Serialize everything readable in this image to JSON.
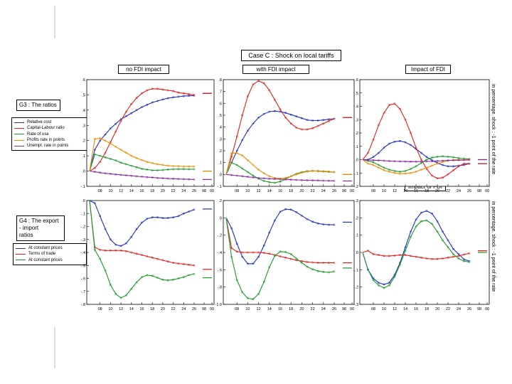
{
  "header": {
    "title": "Case C : Shock on local tariffs",
    "col_titles": [
      "no FDI impact",
      "with FDI impact",
      "Impact of FDI"
    ],
    "inner_title": "Impact of FDI"
  },
  "groups": {
    "g3": "G3 : The ratios",
    "g4": "G4 : The export - import\n ratios"
  },
  "side_note": "in percentage. shock : -1 point of the rate",
  "legends": {
    "top": [
      {
        "name": "Relative cost",
        "color": "#1f2fbf"
      },
      {
        "name": "Capital-Labour ratio",
        "color": "#e0201c"
      },
      {
        "name": "Rate of use",
        "color": "#1a9a2a"
      },
      {
        "name": "Profits rate in points",
        "color": "#f08a00"
      },
      {
        "name": "Unempl. rate in points",
        "color": "#8a2ca0"
      }
    ],
    "bottom": [
      {
        "name": "At constant prices",
        "color": "#1f2fbf"
      },
      {
        "name": "Terms of trade",
        "color": "#e0201c"
      },
      {
        "name": "At constant prices",
        "color": "#1a9a2a"
      }
    ]
  },
  "chart_data": [
    {
      "type": "line",
      "panel": "G3 no FDI impact",
      "x": [
        6,
        7,
        8,
        9,
        10,
        11,
        12,
        13,
        14,
        15,
        16,
        17,
        18,
        19,
        20,
        21,
        22,
        23,
        24,
        25,
        26
      ],
      "ylim": [
        -0.1,
        0.6
      ],
      "yticks": [
        -0.1,
        0.0,
        0.1,
        0.2,
        0.3,
        0.4,
        0.5,
        0.6
      ],
      "ytick_labels": [
        "-.1",
        ".0",
        ".1",
        ".2",
        ".3",
        ".4",
        ".5",
        ".6"
      ],
      "xtick_labels": [
        "08",
        "10",
        "12",
        "14",
        "16",
        "18",
        "20",
        "22",
        "24",
        "26",
        "98",
        "00"
      ],
      "series": [
        {
          "name": "Relative cost",
          "values": [
            0,
            0.14,
            0.2,
            0.24,
            0.28,
            0.31,
            0.34,
            0.36,
            0.38,
            0.4,
            0.42,
            0.435,
            0.45,
            0.46,
            0.47,
            0.478,
            0.484,
            0.488,
            0.492,
            0.494,
            0.495
          ],
          "end_marker": 0.51
        },
        {
          "name": "Capital-Labour ratio",
          "values": [
            0,
            0.02,
            0.06,
            0.12,
            0.19,
            0.26,
            0.33,
            0.39,
            0.44,
            0.48,
            0.51,
            0.53,
            0.54,
            0.54,
            0.535,
            0.53,
            0.525,
            0.515,
            0.51,
            0.505,
            0.5
          ],
          "end_marker": 0.51
        },
        {
          "name": "Rate of use",
          "values": [
            0,
            0.11,
            0.1,
            0.09,
            0.08,
            0.07,
            0.055,
            0.045,
            0.035,
            0.025,
            0.015,
            0.01,
            0.005,
            0.005,
            0.007,
            0.01,
            0.012,
            0.013,
            0.013,
            0.012,
            0.012
          ],
          "end_marker": 0.0
        },
        {
          "name": "Profits rate in points",
          "values": [
            0,
            0.21,
            0.215,
            0.2,
            0.18,
            0.16,
            0.14,
            0.12,
            0.1,
            0.085,
            0.072,
            0.06,
            0.052,
            0.045,
            0.04,
            0.036,
            0.033,
            0.032,
            0.03,
            0.03,
            0.03
          ],
          "end_marker": 0.0
        },
        {
          "name": "Unempl. rate in points",
          "values": [
            0,
            -0.005,
            -0.01,
            -0.015,
            -0.018,
            -0.022,
            -0.025,
            -0.028,
            -0.031,
            -0.034,
            -0.037,
            -0.04,
            -0.042,
            -0.045,
            -0.047,
            -0.049,
            -0.05,
            -0.052,
            -0.053,
            -0.054,
            -0.055
          ],
          "end_marker": -0.055
        }
      ]
    },
    {
      "type": "line",
      "panel": "G3 with FDI impact",
      "x": [
        6,
        7,
        8,
        9,
        10,
        11,
        12,
        13,
        14,
        15,
        16,
        17,
        18,
        19,
        20,
        21,
        22,
        23,
        24,
        25,
        26
      ],
      "ylim": [
        -0.1,
        0.8
      ],
      "yticks": [
        -0.1,
        0.0,
        0.1,
        0.2,
        0.3,
        0.4,
        0.5,
        0.6,
        0.7,
        0.8
      ],
      "ytick_labels": [
        "-.1",
        ".0",
        ".1",
        ".2",
        ".3",
        ".4",
        ".5",
        ".6",
        ".7",
        ".8"
      ],
      "xtick_labels": [
        "08",
        "10",
        "12",
        "14",
        "16",
        "18",
        "20",
        "22",
        "24",
        "26",
        "98",
        "00"
      ],
      "series": [
        {
          "name": "Relative cost",
          "values": [
            0,
            0.1,
            0.2,
            0.29,
            0.37,
            0.43,
            0.48,
            0.51,
            0.53,
            0.535,
            0.53,
            0.52,
            0.505,
            0.49,
            0.475,
            0.46,
            0.455,
            0.455,
            0.46,
            0.465,
            0.47
          ],
          "end_marker": 0.48
        },
        {
          "name": "Capital-Labour ratio",
          "values": [
            0,
            0.15,
            0.32,
            0.5,
            0.66,
            0.76,
            0.79,
            0.77,
            0.71,
            0.63,
            0.55,
            0.48,
            0.43,
            0.395,
            0.38,
            0.38,
            0.39,
            0.41,
            0.43,
            0.45,
            0.47
          ],
          "end_marker": 0.48
        },
        {
          "name": "Rate of use",
          "values": [
            0,
            0.1,
            0.08,
            0.05,
            0.02,
            -0.01,
            -0.035,
            -0.055,
            -0.065,
            -0.07,
            -0.06,
            -0.04,
            -0.015,
            0.005,
            0.02,
            0.028,
            0.03,
            0.028,
            0.025,
            0.022,
            0.02
          ],
          "end_marker": 0.0
        },
        {
          "name": "Profits rate in points",
          "values": [
            0,
            0.18,
            0.18,
            0.16,
            0.12,
            0.08,
            0.04,
            0.01,
            -0.015,
            -0.03,
            -0.035,
            -0.03,
            -0.015,
            0.0,
            0.015,
            0.025,
            0.03,
            0.03,
            0.028,
            0.025,
            0.02
          ],
          "end_marker": 0.0
        },
        {
          "name": "Unempl. rate in points",
          "values": [
            0,
            -0.005,
            -0.01,
            -0.015,
            -0.02,
            -0.025,
            -0.03,
            -0.033,
            -0.036,
            -0.038,
            -0.04,
            -0.042,
            -0.044,
            -0.046,
            -0.048,
            -0.049,
            -0.05,
            -0.051,
            -0.052,
            -0.053,
            -0.054
          ],
          "end_marker": -0.055
        }
      ]
    },
    {
      "type": "line",
      "panel": "G3 Impact of FDI",
      "x": [
        6,
        7,
        8,
        9,
        10,
        11,
        12,
        13,
        14,
        15,
        16,
        17,
        18,
        19,
        20,
        21,
        22,
        23,
        24,
        25,
        26
      ],
      "ylim": [
        -0.2,
        0.6
      ],
      "yticks": [
        -0.2,
        -0.1,
        0.0,
        0.1,
        0.2,
        0.3,
        0.4,
        0.5,
        0.6
      ],
      "ytick_labels": [
        "-.2",
        "-.1",
        ".0",
        ".1",
        ".2",
        ".3",
        ".4",
        ".5",
        ".6"
      ],
      "xtick_labels": [
        "08",
        "10",
        "12",
        "14",
        "16",
        "18",
        "20",
        "22",
        "24",
        "26",
        "98",
        "00"
      ],
      "series": [
        {
          "name": "Relative cost",
          "values": [
            0,
            0.0,
            0.02,
            0.05,
            0.09,
            0.12,
            0.135,
            0.14,
            0.13,
            0.11,
            0.08,
            0.05,
            0.02,
            -0.005,
            -0.025,
            -0.04,
            -0.05,
            -0.05,
            -0.045,
            -0.04,
            -0.03
          ],
          "end_marker": -0.03
        },
        {
          "name": "Capital-Labour ratio",
          "values": [
            0,
            0.05,
            0.15,
            0.26,
            0.35,
            0.41,
            0.42,
            0.38,
            0.3,
            0.2,
            0.09,
            0.0,
            -0.07,
            -0.12,
            -0.14,
            -0.135,
            -0.11,
            -0.08,
            -0.05,
            -0.03,
            -0.03
          ],
          "end_marker": -0.03
        },
        {
          "name": "Rate of use",
          "values": [
            0,
            -0.01,
            -0.02,
            -0.04,
            -0.06,
            -0.075,
            -0.085,
            -0.09,
            -0.085,
            -0.07,
            -0.05,
            -0.025,
            0.0,
            0.015,
            0.022,
            0.025,
            0.022,
            0.018,
            0.012,
            0.008,
            0.005
          ],
          "end_marker": 0.0
        },
        {
          "name": "Profits rate in points",
          "values": [
            0,
            -0.03,
            -0.04,
            -0.06,
            -0.08,
            -0.09,
            -0.1,
            -0.105,
            -0.105,
            -0.1,
            -0.09,
            -0.075,
            -0.06,
            -0.045,
            -0.03,
            -0.018,
            -0.008,
            -0.002,
            0.0,
            0.0,
            0.0
          ],
          "end_marker": 0.0
        },
        {
          "name": "Unempl. rate in points",
          "values": [
            0,
            -0.002,
            -0.004,
            -0.006,
            -0.008,
            -0.01,
            -0.012,
            -0.013,
            -0.014,
            -0.015,
            -0.015,
            -0.014,
            -0.013,
            -0.012,
            -0.01,
            -0.008,
            -0.006,
            -0.005,
            -0.004,
            -0.003,
            -0.002
          ],
          "end_marker": 0.0
        }
      ]
    },
    {
      "type": "line",
      "panel": "G4 no FDI impact",
      "x": [
        6,
        7,
        8,
        9,
        10,
        11,
        12,
        13,
        14,
        15,
        16,
        17,
        18,
        19,
        20,
        21,
        22,
        23,
        24,
        25,
        26
      ],
      "ylim": [
        -0.8,
        0.0
      ],
      "yticks": [
        -0.8,
        -0.7,
        -0.6,
        -0.5,
        -0.4,
        -0.3,
        -0.2,
        -0.1,
        0.0
      ],
      "ytick_labels": [
        "-.8",
        "-.7",
        "-.6",
        "-.5",
        "-.4",
        "-.3",
        "-.2",
        "-.1",
        ".0"
      ],
      "xtick_labels": [
        "08",
        "10",
        "12",
        "14",
        "16",
        "18",
        "20",
        "22",
        "24",
        "26",
        "98",
        "00"
      ],
      "series": [
        {
          "name": "At constant prices",
          "values": [
            0,
            -0.02,
            -0.12,
            -0.22,
            -0.3,
            -0.34,
            -0.35,
            -0.33,
            -0.28,
            -0.22,
            -0.17,
            -0.14,
            -0.13,
            -0.13,
            -0.135,
            -0.135,
            -0.13,
            -0.12,
            -0.1,
            -0.085,
            -0.07
          ],
          "end_marker": -0.065
        },
        {
          "name": "Terms of trade",
          "values": [
            0,
            -0.36,
            -0.38,
            -0.385,
            -0.385,
            -0.385,
            -0.385,
            -0.39,
            -0.4,
            -0.41,
            -0.42,
            -0.43,
            -0.44,
            -0.45,
            -0.46,
            -0.47,
            -0.48,
            -0.485,
            -0.49,
            -0.495,
            -0.5
          ],
          "end_marker": -0.53
        },
        {
          "name": "At constant prices",
          "values": [
            0,
            -0.38,
            -0.45,
            -0.54,
            -0.65,
            -0.72,
            -0.75,
            -0.73,
            -0.68,
            -0.63,
            -0.59,
            -0.575,
            -0.58,
            -0.595,
            -0.61,
            -0.615,
            -0.61,
            -0.6,
            -0.59,
            -0.575,
            -0.565
          ],
          "end_marker": -0.595
        }
      ]
    },
    {
      "type": "line",
      "panel": "G4 with FDI impact",
      "x": [
        6,
        7,
        8,
        9,
        10,
        11,
        12,
        13,
        14,
        15,
        16,
        17,
        18,
        19,
        20,
        21,
        22,
        23,
        24,
        25,
        26
      ],
      "ylim": [
        -1.0,
        0.2
      ],
      "yticks": [
        -1.0,
        -0.8,
        -0.6,
        -0.4,
        -0.2,
        0.0,
        0.2
      ],
      "ytick_labels": [
        "-1.0",
        "-.8",
        "-.6",
        "-.4",
        "-.2",
        ".0",
        ".2"
      ],
      "xtick_labels": [
        "08",
        "10",
        "12",
        "14",
        "16",
        "18",
        "20",
        "22",
        "24",
        "26",
        "98",
        "00"
      ],
      "series": [
        {
          "name": "At constant prices",
          "values": [
            0,
            -0.12,
            -0.3,
            -0.45,
            -0.53,
            -0.53,
            -0.45,
            -0.32,
            -0.17,
            -0.03,
            0.07,
            0.1,
            0.095,
            0.065,
            0.025,
            -0.015,
            -0.045,
            -0.065,
            -0.075,
            -0.08,
            -0.08
          ],
          "end_marker": -0.05
        },
        {
          "name": "Terms of trade",
          "values": [
            0,
            -0.35,
            -0.39,
            -0.4,
            -0.4,
            -0.4,
            -0.4,
            -0.405,
            -0.415,
            -0.43,
            -0.445,
            -0.46,
            -0.475,
            -0.49,
            -0.5,
            -0.51,
            -0.515,
            -0.52,
            -0.52,
            -0.52,
            -0.52
          ],
          "end_marker": -0.52
        },
        {
          "name": "At constant prices",
          "values": [
            0,
            -0.45,
            -0.72,
            -0.86,
            -0.93,
            -0.94,
            -0.88,
            -0.74,
            -0.57,
            -0.44,
            -0.39,
            -0.395,
            -0.42,
            -0.47,
            -0.52,
            -0.565,
            -0.595,
            -0.615,
            -0.625,
            -0.63,
            -0.62
          ],
          "end_marker": -0.58
        }
      ]
    },
    {
      "type": "line",
      "panel": "G4 Impact of FDI",
      "x": [
        6,
        7,
        8,
        9,
        10,
        11,
        12,
        13,
        14,
        15,
        16,
        17,
        18,
        19,
        20,
        21,
        22,
        23,
        24,
        25,
        26
      ],
      "ylim": [
        -0.3,
        0.3
      ],
      "yticks": [
        -0.3,
        -0.2,
        -0.1,
        0.0,
        0.1,
        0.2,
        0.3
      ],
      "ytick_labels": [
        "-.3",
        "-.2",
        "-.1",
        ".0",
        ".1",
        ".2",
        ".3"
      ],
      "xtick_labels": [
        "08",
        "10",
        "12",
        "14",
        "16",
        "18",
        "20",
        "22",
        "24",
        "26",
        "98",
        "00"
      ],
      "series": [
        {
          "name": "At constant prices",
          "values": [
            0,
            -0.1,
            -0.15,
            -0.175,
            -0.185,
            -0.175,
            -0.13,
            -0.06,
            0.03,
            0.12,
            0.19,
            0.23,
            0.24,
            0.225,
            0.18,
            0.12,
            0.07,
            0.02,
            -0.01,
            -0.04,
            -0.05
          ],
          "end_marker": 0.01
        },
        {
          "name": "Terms of trade",
          "values": [
            0,
            0.01,
            -0.01,
            -0.015,
            -0.02,
            -0.02,
            -0.018,
            -0.015,
            -0.015,
            -0.02,
            -0.025,
            -0.03,
            -0.035,
            -0.038,
            -0.038,
            -0.035,
            -0.03,
            -0.025,
            -0.02,
            -0.012,
            -0.005
          ],
          "end_marker": 0.01
        },
        {
          "name": "At constant prices",
          "values": [
            0,
            -0.1,
            -0.16,
            -0.19,
            -0.205,
            -0.19,
            -0.14,
            -0.07,
            0.01,
            0.09,
            0.15,
            0.18,
            0.185,
            0.165,
            0.12,
            0.07,
            0.03,
            -0.01,
            -0.035,
            -0.05,
            -0.055
          ],
          "end_marker": 0.0
        }
      ]
    }
  ]
}
